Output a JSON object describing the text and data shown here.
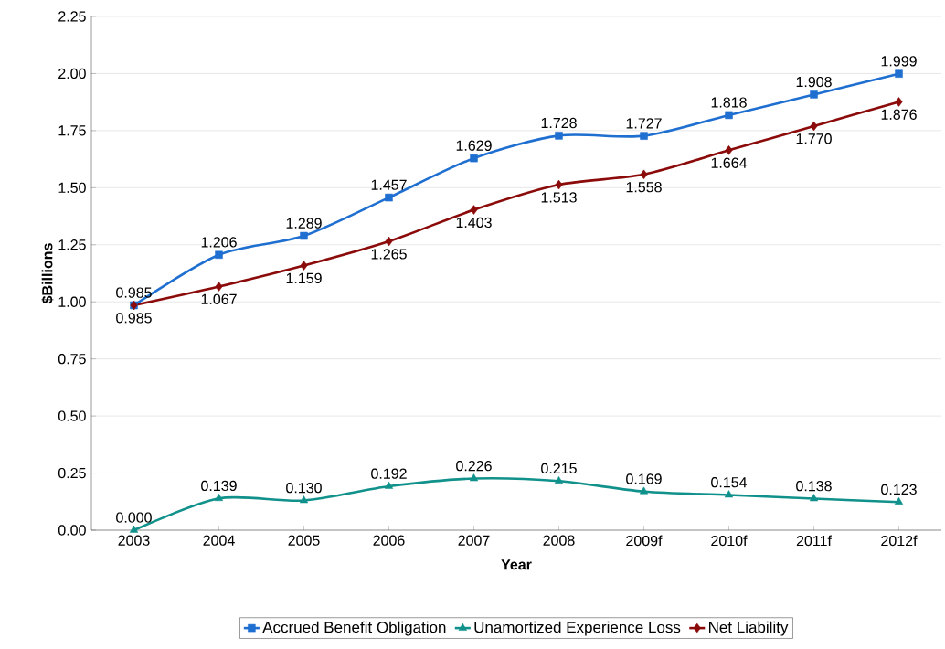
{
  "chart_data": {
    "type": "line",
    "xlabel": "Year",
    "ylabel": "$Billions",
    "categories": [
      "2003",
      "2004",
      "2005",
      "2006",
      "2007",
      "2008",
      "2009f",
      "2010f",
      "2011f",
      "2012f"
    ],
    "series": [
      {
        "name": "Accrued Benefit Obligation",
        "color": "#1f6fd1",
        "marker": "square",
        "values": [
          0.985,
          1.206,
          1.289,
          1.457,
          1.629,
          1.728,
          1.727,
          1.818,
          1.908,
          1.999
        ],
        "value_labels": [
          "0.985",
          "1.206",
          "1.289",
          "1.457",
          "1.629",
          "1.728",
          "1.727",
          "1.818",
          "1.908",
          "1.999"
        ]
      },
      {
        "name": "Unamortized Experience Loss",
        "color": "#11918b",
        "marker": "triangle",
        "values": [
          0.0,
          0.139,
          0.13,
          0.192,
          0.226,
          0.215,
          0.169,
          0.154,
          0.138,
          0.123
        ],
        "value_labels": [
          "0.000",
          "0.139",
          "0.130",
          "0.192",
          "0.226",
          "0.215",
          "0.169",
          "0.154",
          "0.138",
          "0.123"
        ]
      },
      {
        "name": "Net Liability",
        "color": "#8b0a0a",
        "marker": "diamond",
        "values": [
          0.985,
          1.067,
          1.159,
          1.265,
          1.403,
          1.513,
          1.558,
          1.664,
          1.77,
          1.876
        ],
        "value_labels": [
          "0.985",
          "1.067",
          "1.159",
          "1.265",
          "1.403",
          "1.513",
          "1.558",
          "1.664",
          "1.770",
          "1.876"
        ]
      }
    ],
    "ylim": [
      0,
      2.25
    ],
    "yticks": [
      {
        "value": 0,
        "label": "0.00"
      },
      {
        "value": 0.25,
        "label": "0.25"
      },
      {
        "value": 0.5,
        "label": "0.50"
      },
      {
        "value": 0.75,
        "label": "0.75"
      },
      {
        "value": 1,
        "label": "1.00"
      },
      {
        "value": 1.25,
        "label": "1.25"
      },
      {
        "value": 1.5,
        "label": "1.50"
      },
      {
        "value": 1.75,
        "label": "1.75"
      },
      {
        "value": 2,
        "label": "2.00"
      },
      {
        "value": 2.25,
        "label": "2.25"
      }
    ],
    "grid": "y",
    "legend": "bottom",
    "line_style": "solid"
  }
}
